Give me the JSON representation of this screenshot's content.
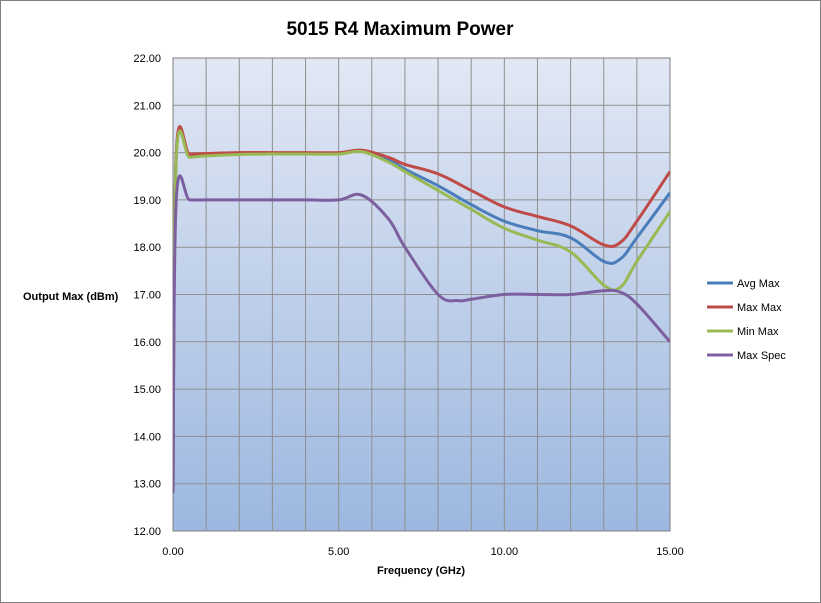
{
  "chart_data": {
    "type": "line",
    "title": "5015 R4 Maximum Power",
    "xlabel": "Frequency (GHz)",
    "ylabel": "Output Max (dBm)",
    "xlim": [
      0,
      15
    ],
    "ylim": [
      12,
      22
    ],
    "x_ticks": [
      "0.00",
      "5.00",
      "10.00",
      "15.00"
    ],
    "y_ticks": [
      "12.00",
      "13.00",
      "14.00",
      "15.00",
      "16.00",
      "17.00",
      "18.00",
      "19.00",
      "20.00",
      "21.00",
      "22.00"
    ],
    "grid": true,
    "legend_position": "right",
    "series": [
      {
        "name": "Avg Max",
        "color": "#4a7ebb",
        "x": [
          0.0,
          0.1,
          0.5,
          1.0,
          2.0,
          3.0,
          4.0,
          5.0,
          5.7,
          6.5,
          7.0,
          8.0,
          9.0,
          10.0,
          11.0,
          12.0,
          13.0,
          13.5,
          14.0,
          15.0
        ],
        "y": [
          12.9,
          19.95,
          19.93,
          19.95,
          19.98,
          19.98,
          19.98,
          19.98,
          20.03,
          19.85,
          19.65,
          19.3,
          18.9,
          18.55,
          18.35,
          18.2,
          17.7,
          17.75,
          18.2,
          19.15
        ]
      },
      {
        "name": "Max Max",
        "color": "#be4b48",
        "x": [
          0.0,
          0.1,
          0.5,
          1.0,
          2.0,
          3.0,
          4.0,
          5.0,
          5.7,
          6.5,
          7.0,
          8.0,
          9.0,
          10.0,
          11.0,
          12.0,
          13.0,
          13.5,
          14.0,
          15.0
        ],
        "y": [
          13.0,
          20.0,
          19.97,
          19.98,
          20.0,
          20.0,
          20.0,
          20.0,
          20.05,
          19.9,
          19.75,
          19.55,
          19.2,
          18.85,
          18.65,
          18.45,
          18.05,
          18.1,
          18.55,
          19.6
        ]
      },
      {
        "name": "Min Max",
        "color": "#98b954",
        "x": [
          0.0,
          0.1,
          0.5,
          1.0,
          2.0,
          3.0,
          4.0,
          5.0,
          5.7,
          6.5,
          7.0,
          8.0,
          9.0,
          10.0,
          11.0,
          12.0,
          13.0,
          13.5,
          14.0,
          15.0
        ],
        "y": [
          12.9,
          19.9,
          19.9,
          19.93,
          19.96,
          19.97,
          19.97,
          19.97,
          20.02,
          19.8,
          19.6,
          19.2,
          18.8,
          18.4,
          18.15,
          17.9,
          17.2,
          17.15,
          17.7,
          18.75
        ]
      },
      {
        "name": "Max Spec",
        "color": "#7d5fa0",
        "x": [
          0.0,
          0.1,
          0.5,
          1.0,
          2.0,
          3.0,
          4.0,
          5.0,
          5.7,
          6.5,
          7.0,
          8.0,
          8.6,
          9.0,
          10.0,
          11.0,
          12.0,
          13.0,
          13.5,
          14.0,
          15.0
        ],
        "y": [
          12.8,
          19.02,
          19.0,
          19.0,
          19.0,
          19.0,
          19.0,
          19.0,
          19.1,
          18.6,
          18.0,
          17.0,
          16.87,
          16.9,
          17.0,
          17.0,
          17.0,
          17.08,
          17.05,
          16.8,
          16.0
        ]
      }
    ]
  }
}
